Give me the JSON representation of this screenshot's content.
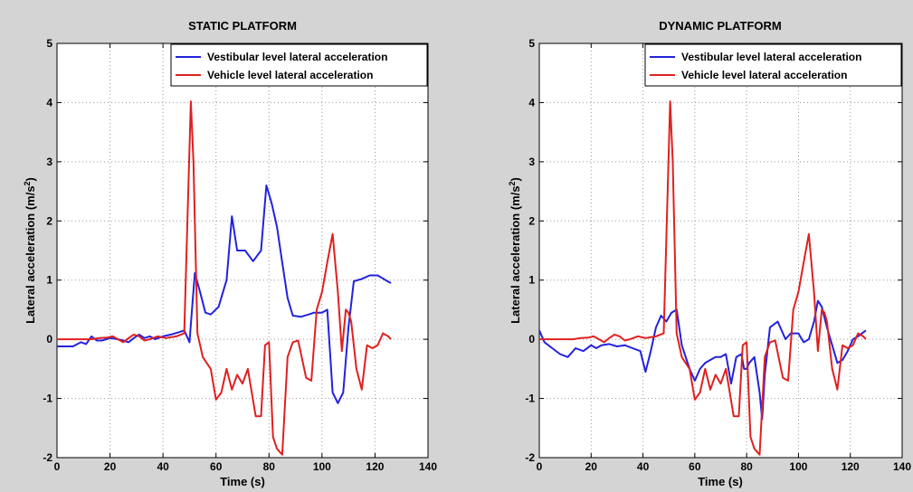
{
  "colors": {
    "figure_bg": "#d4d4d4",
    "plot_bg": "#ffffff",
    "series_1": "#2222dd",
    "series_2": "#e02020"
  },
  "chart_data": [
    {
      "type": "line",
      "title": "STATIC PLATFORM",
      "xlabel": "Time (s)",
      "ylabel_main": "Lateral acceleration (m/s",
      "ylabel_sup": "2",
      "ylabel_end": ")",
      "xlim": [
        0,
        140
      ],
      "ylim": [
        -2,
        5
      ],
      "xticks": [
        "0",
        "20",
        "40",
        "60",
        "80",
        "100",
        "120",
        "140"
      ],
      "yticks": [
        "-2",
        "-1",
        "0",
        "1",
        "2",
        "3",
        "4",
        "5"
      ],
      "grid": true,
      "legend_position": "top-right",
      "series": [
        {
          "name": "Vestibular level lateral acceleration",
          "color": "#2222dd",
          "x": [
            0,
            3,
            6,
            9,
            11,
            13,
            15,
            17,
            20,
            23,
            25,
            27,
            29,
            31,
            33,
            35,
            37,
            40,
            43,
            46,
            48,
            50,
            52,
            54,
            56,
            58,
            61,
            64,
            66,
            68,
            71,
            74,
            77,
            79,
            81,
            83,
            85,
            87,
            89,
            92,
            95,
            97,
            100,
            102,
            104,
            106,
            108,
            110,
            112,
            115,
            118,
            121,
            124,
            126
          ],
          "y": [
            -0.12,
            -0.12,
            -0.12,
            -0.05,
            -0.08,
            0.05,
            -0.02,
            -0.02,
            0.02,
            0.0,
            -0.02,
            -0.05,
            0.02,
            0.08,
            0.02,
            0.05,
            0.0,
            0.05,
            0.08,
            0.12,
            0.15,
            -0.05,
            1.12,
            0.8,
            0.45,
            0.42,
            0.55,
            1.0,
            2.08,
            1.5,
            1.5,
            1.32,
            1.5,
            2.6,
            2.3,
            1.9,
            1.3,
            0.7,
            0.4,
            0.38,
            0.42,
            0.45,
            0.45,
            0.5,
            -0.9,
            -1.08,
            -0.9,
            0.2,
            0.98,
            1.02,
            1.08,
            1.08,
            1.0,
            0.95
          ]
        },
        {
          "name": "Vehicle level lateral acceleration",
          "color": "#e02020",
          "x": [
            0,
            5,
            10,
            13,
            16,
            19,
            21,
            23,
            25,
            27,
            29,
            31,
            33,
            35,
            38,
            41,
            45,
            48,
            50.5,
            51.5,
            53,
            55,
            58,
            60,
            62,
            64,
            66,
            68,
            70,
            72,
            75,
            77,
            78.5,
            80,
            81.5,
            83,
            85,
            87,
            89,
            91,
            94,
            96,
            98,
            100,
            102,
            104,
            106,
            107.5,
            109,
            110,
            111,
            113,
            115,
            117,
            119,
            121,
            123,
            125,
            126
          ],
          "y": [
            0.0,
            0.0,
            0.0,
            0.0,
            0.02,
            0.03,
            0.05,
            0.0,
            -0.05,
            0.02,
            0.08,
            0.05,
            -0.02,
            0.0,
            0.05,
            0.02,
            0.05,
            0.1,
            4.02,
            3.0,
            0.1,
            -0.3,
            -0.5,
            -1.02,
            -0.9,
            -0.5,
            -0.85,
            -0.6,
            -0.75,
            -0.5,
            -1.3,
            -1.3,
            -0.1,
            -0.05,
            -1.65,
            -1.85,
            -1.95,
            -0.3,
            -0.05,
            -0.02,
            -0.65,
            -0.7,
            0.5,
            0.8,
            1.3,
            1.78,
            0.8,
            -0.2,
            0.5,
            0.45,
            0.3,
            -0.5,
            -0.85,
            -0.1,
            -0.15,
            -0.1,
            0.1,
            0.05,
            0.0
          ]
        }
      ]
    },
    {
      "type": "line",
      "title": "DYNAMIC PLATFORM",
      "xlabel": "Time (s)",
      "ylabel_main": "Lateral acceleration (m/s",
      "ylabel_sup": "2",
      "ylabel_end": ")",
      "xlim": [
        0,
        140
      ],
      "ylim": [
        -2,
        5
      ],
      "xticks": [
        "0",
        "20",
        "40",
        "60",
        "80",
        "100",
        "120",
        "140"
      ],
      "yticks": [
        "-2",
        "-1",
        "0",
        "1",
        "2",
        "3",
        "4",
        "5"
      ],
      "grid": true,
      "legend_position": "top-right",
      "series": [
        {
          "name": "Vestibular level lateral acceleration",
          "color": "#2222dd",
          "x": [
            0,
            2,
            5,
            8,
            11,
            14,
            17,
            20,
            22,
            24,
            27,
            30,
            33,
            36,
            39,
            41,
            43,
            45,
            47,
            49,
            51,
            53,
            55,
            58,
            60,
            62,
            64,
            66,
            68,
            70,
            72,
            74,
            76,
            78,
            79,
            80,
            81,
            83,
            85,
            86,
            87,
            89,
            92,
            95,
            97,
            100,
            102,
            104,
            106,
            107.5,
            109,
            111,
            113,
            115,
            117,
            119,
            121,
            123,
            126
          ],
          "y": [
            0.15,
            -0.05,
            -0.15,
            -0.25,
            -0.3,
            -0.15,
            -0.2,
            -0.1,
            -0.15,
            -0.1,
            -0.08,
            -0.12,
            -0.1,
            -0.15,
            -0.2,
            -0.55,
            -0.2,
            0.2,
            0.4,
            0.3,
            0.45,
            0.5,
            -0.1,
            -0.5,
            -0.7,
            -0.5,
            -0.4,
            -0.35,
            -0.3,
            -0.3,
            -0.25,
            -0.75,
            -0.3,
            -0.25,
            -0.5,
            -0.5,
            -0.4,
            -0.3,
            -0.9,
            -1.35,
            -0.6,
            0.2,
            0.3,
            0.0,
            0.1,
            0.1,
            -0.05,
            0.0,
            0.3,
            0.65,
            0.55,
            0.2,
            -0.1,
            -0.4,
            -0.35,
            -0.2,
            0.0,
            0.05,
            0.15
          ]
        },
        {
          "name": "Vehicle level lateral acceleration",
          "color": "#e02020",
          "x": [
            0,
            5,
            10,
            13,
            16,
            19,
            21,
            23,
            25,
            27,
            29,
            31,
            33,
            35,
            38,
            41,
            45,
            48,
            50.5,
            51.5,
            53,
            55,
            58,
            60,
            62,
            64,
            66,
            68,
            70,
            72,
            75,
            77,
            78.5,
            80,
            81.5,
            83,
            85,
            87,
            89,
            91,
            94,
            96,
            98,
            100,
            102,
            104,
            106,
            107.5,
            109,
            110,
            111,
            113,
            115,
            117,
            119,
            121,
            123,
            125,
            126
          ],
          "y": [
            0.0,
            0.0,
            0.0,
            0.0,
            0.02,
            0.03,
            0.05,
            0.0,
            -0.05,
            0.02,
            0.08,
            0.05,
            -0.02,
            0.0,
            0.05,
            0.02,
            0.05,
            0.1,
            4.02,
            3.0,
            0.1,
            -0.3,
            -0.5,
            -1.02,
            -0.9,
            -0.5,
            -0.85,
            -0.6,
            -0.75,
            -0.5,
            -1.3,
            -1.3,
            -0.1,
            -0.05,
            -1.65,
            -1.85,
            -1.95,
            -0.3,
            -0.05,
            -0.02,
            -0.65,
            -0.7,
            0.5,
            0.8,
            1.3,
            1.78,
            0.8,
            -0.2,
            0.5,
            0.45,
            0.3,
            -0.5,
            -0.85,
            -0.1,
            -0.15,
            -0.1,
            0.1,
            0.05,
            0.0
          ]
        }
      ]
    }
  ]
}
